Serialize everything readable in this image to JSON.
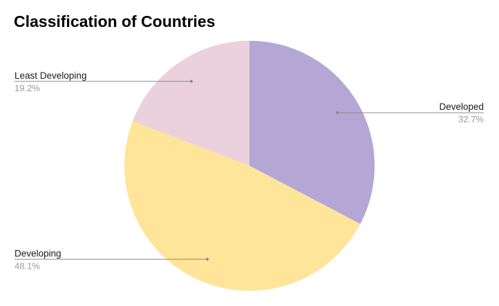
{
  "chart_data": {
    "type": "pie",
    "title": "Classification of Countries",
    "slices": [
      {
        "label": "Developed",
        "value": 32.7,
        "percent_label": "32.7%",
        "color": "#b4a7d6"
      },
      {
        "label": "Developing",
        "value": 48.1,
        "percent_label": "48.1%",
        "color": "#ffe599"
      },
      {
        "label": "Least Developing",
        "value": 19.2,
        "percent_label": "19.2%",
        "color": "#ead1dc"
      }
    ],
    "legend": "none",
    "labels_position": "outside with leader lines"
  }
}
